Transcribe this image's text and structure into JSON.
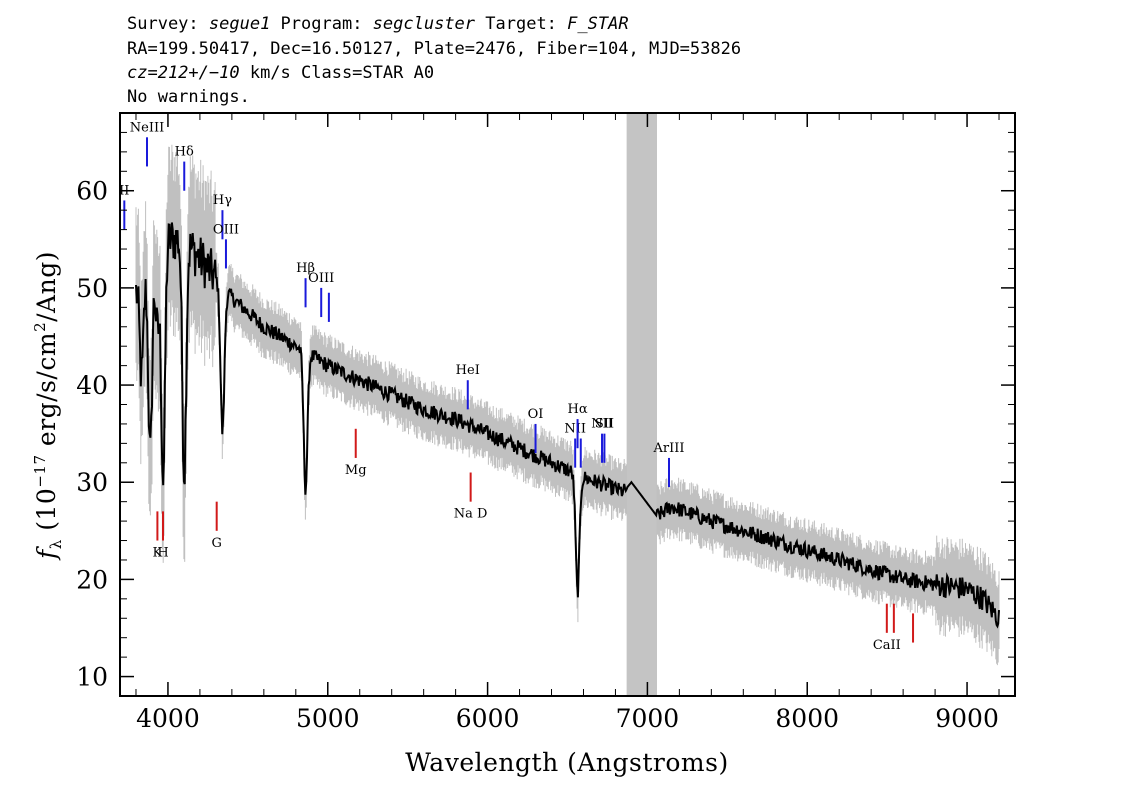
{
  "header": {
    "line1": {
      "survey_label": "Survey: ",
      "survey": "segue1",
      "program_label": " Program: ",
      "program": "segcluster",
      "target_label": " Target: ",
      "target": "F_STAR"
    },
    "line2": "RA=199.50417, Dec=16.50127, Plate=2476, Fiber=104, MJD=53826",
    "line3": {
      "cz": "cz=212+/−10",
      "rest": " km/s Class=STAR A0"
    },
    "line4": "No warnings."
  },
  "chart_data": {
    "type": "line",
    "xlabel": "Wavelength (Angstroms)",
    "ylabel": {
      "f": "f",
      "sub": "λ",
      "pre": " (10",
      "exp": "−17",
      "mid": " erg/s/cm",
      "exp2": "2",
      "post": "/Ang)"
    },
    "xlim": [
      3700,
      9300
    ],
    "ylim": [
      8,
      68
    ],
    "x_ticks": [
      4000,
      5000,
      6000,
      7000,
      8000,
      9000
    ],
    "y_ticks": [
      10,
      20,
      30,
      40,
      50,
      60
    ],
    "x_tick_labels": [
      "4000",
      "5000",
      "6000",
      "7000",
      "8000",
      "9000"
    ],
    "y_tick_labels": [
      "10",
      "20",
      "30",
      "40",
      "50",
      "60"
    ],
    "masked_region": [
      6870,
      7060
    ],
    "colors": {
      "spectrum": "#000000",
      "error_band": "#c0c0c0",
      "mask": "#c4c4c4",
      "emission": "#1a1adb",
      "absorption": "#d11a1a"
    },
    "continuum_anchors": {
      "x": [
        3780,
        3900,
        4000,
        4100,
        4200,
        4400,
        4600,
        4800,
        5000,
        5200,
        5400,
        5600,
        5800,
        6000,
        6200,
        6400,
        6600,
        6850,
        6900,
        7060,
        7150,
        7400,
        7600,
        7800,
        8000,
        8200,
        8400,
        8600,
        8800,
        9000,
        9100,
        9200
      ],
      "y": [
        49,
        53,
        55,
        55,
        53,
        49,
        46,
        44,
        42,
        40.5,
        39,
        37.5,
        36.5,
        35,
        33.5,
        32,
        30.5,
        29,
        30,
        26.5,
        27.5,
        26,
        25,
        24,
        23,
        22,
        21,
        20,
        19.5,
        19,
        18,
        16
      ]
    },
    "absorption_features": [
      {
        "x": 3835,
        "depth": 10
      },
      {
        "x": 3889,
        "depth": 20
      },
      {
        "x": 3934,
        "depth": 8
      },
      {
        "x": 3970,
        "depth": 24
      },
      {
        "x": 4102,
        "depth": 24
      },
      {
        "x": 4341,
        "depth": 15
      },
      {
        "x": 4861,
        "depth": 14
      },
      {
        "x": 6563,
        "depth": 12
      }
    ],
    "emission_lines": [
      {
        "label": "NeIII",
        "x": 3869,
        "y1": 62.5,
        "y2": 65.5
      },
      {
        "label": "Hδ",
        "x": 4102,
        "y1": 60,
        "y2": 63
      },
      {
        "label": "Hγ",
        "x": 4341,
        "y1": 55,
        "y2": 58
      },
      {
        "label": "OIII",
        "x": 4363,
        "y1": 52,
        "y2": 55
      },
      {
        "label": "Hβ",
        "x": 4861,
        "y1": 48,
        "y2": 51
      },
      {
        "label": "OIII",
        "x": 4959,
        "y1": 47,
        "y2": 50
      },
      {
        "label": "",
        "x": 5007,
        "y1": 46.5,
        "y2": 49.5
      },
      {
        "label": "HeI",
        "x": 5876,
        "y1": 37.5,
        "y2": 40.5
      },
      {
        "label": "OI",
        "x": 6300,
        "y1": 33,
        "y2": 36
      },
      {
        "label": "NII",
        "x": 6548,
        "y1": 31.5,
        "y2": 34.5
      },
      {
        "label": "Hα",
        "x": 6563,
        "y1": 33.5,
        "y2": 36.5
      },
      {
        "label": "",
        "x": 6583,
        "y1": 31.5,
        "y2": 34.5
      },
      {
        "label": "NII",
        "x": 6716,
        "y1": 32,
        "y2": 35
      },
      {
        "label": "SII",
        "x": 6731,
        "y1": 32,
        "y2": 35
      },
      {
        "label": "ArIII",
        "x": 7135,
        "y1": 29.5,
        "y2": 32.5
      },
      {
        "label": "II",
        "x": 3727,
        "y1": 56,
        "y2": 59
      }
    ],
    "absorption_lines": [
      {
        "label": "K",
        "x": 3934,
        "y1": 24,
        "y2": 27
      },
      {
        "label": "H",
        "x": 3969,
        "y1": 24,
        "y2": 27
      },
      {
        "label": "G",
        "x": 4305,
        "y1": 25,
        "y2": 28
      },
      {
        "label": "Mg",
        "x": 5175,
        "y1": 32.5,
        "y2": 35.5
      },
      {
        "label": "Na D",
        "x": 5894,
        "y1": 28,
        "y2": 31
      },
      {
        "label": "CaII",
        "x": 8498,
        "y1": 14.5,
        "y2": 17.5
      },
      {
        "label": "",
        "x": 8542,
        "y1": 14.5,
        "y2": 17.5
      },
      {
        "label": "",
        "x": 8662,
        "y1": 13.5,
        "y2": 16.5
      }
    ]
  }
}
